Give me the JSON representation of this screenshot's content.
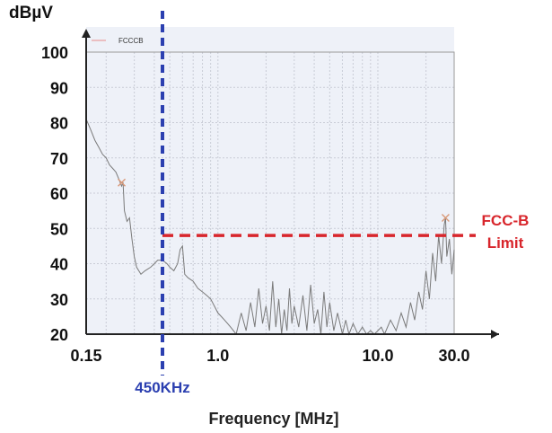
{
  "chart_data": {
    "type": "line",
    "ylabel": "dBµV",
    "xlabel": "Frequency [MHz]",
    "xscale": "log",
    "xlim": [
      0.15,
      50
    ],
    "ylim": [
      20,
      100
    ],
    "x_ticks": [
      {
        "value": 0.15,
        "label": "0.15"
      },
      {
        "value": 1.0,
        "label": "1.0"
      },
      {
        "value": 10.0,
        "label": "10.0"
      },
      {
        "value": 30.0,
        "label": "30.0"
      }
    ],
    "y_ticks": [
      {
        "value": 20,
        "label": "20"
      },
      {
        "value": 30,
        "label": "30"
      },
      {
        "value": 40,
        "label": "40"
      },
      {
        "value": 50,
        "label": "50"
      },
      {
        "value": 60,
        "label": "60"
      },
      {
        "value": 70,
        "label": "70"
      },
      {
        "value": 80,
        "label": "80"
      },
      {
        "value": 90,
        "label": "90"
      },
      {
        "value": 100,
        "label": "100"
      }
    ],
    "grid": true,
    "legend": {
      "position": "top-left",
      "entries": [
        {
          "label": "FCCCB",
          "color": "#e88a8a"
        }
      ]
    },
    "series": [
      {
        "color": "#7a7a7a",
        "points": [
          [
            0.15,
            81
          ],
          [
            0.16,
            78
          ],
          [
            0.17,
            75
          ],
          [
            0.18,
            73
          ],
          [
            0.19,
            71
          ],
          [
            0.2,
            70
          ],
          [
            0.21,
            68
          ],
          [
            0.22,
            67
          ],
          [
            0.23,
            66
          ],
          [
            0.24,
            64
          ],
          [
            0.25,
            62
          ],
          [
            0.255,
            63
          ],
          [
            0.26,
            55
          ],
          [
            0.27,
            52
          ],
          [
            0.28,
            53
          ],
          [
            0.29,
            47
          ],
          [
            0.3,
            42
          ],
          [
            0.31,
            39
          ],
          [
            0.33,
            37
          ],
          [
            0.35,
            38
          ],
          [
            0.38,
            39
          ],
          [
            0.4,
            40
          ],
          [
            0.42,
            41
          ],
          [
            0.45,
            41
          ],
          [
            0.48,
            40
          ],
          [
            0.5,
            39
          ],
          [
            0.53,
            38
          ],
          [
            0.56,
            40
          ],
          [
            0.58,
            44
          ],
          [
            0.6,
            45
          ],
          [
            0.62,
            37
          ],
          [
            0.65,
            36
          ],
          [
            0.7,
            35
          ],
          [
            0.75,
            33
          ],
          [
            0.8,
            32
          ],
          [
            0.85,
            31
          ],
          [
            0.9,
            30
          ],
          [
            0.95,
            28
          ],
          [
            1.0,
            26
          ],
          [
            1.05,
            25
          ],
          [
            1.1,
            24
          ],
          [
            1.15,
            23
          ],
          [
            1.2,
            22
          ],
          [
            1.25,
            21
          ],
          [
            1.3,
            20
          ],
          [
            1.4,
            26
          ],
          [
            1.5,
            21
          ],
          [
            1.6,
            29
          ],
          [
            1.7,
            22
          ],
          [
            1.8,
            33
          ],
          [
            1.9,
            23
          ],
          [
            2.0,
            28
          ],
          [
            2.1,
            21
          ],
          [
            2.2,
            35
          ],
          [
            2.3,
            22
          ],
          [
            2.4,
            30
          ],
          [
            2.5,
            20
          ],
          [
            2.6,
            27
          ],
          [
            2.7,
            21
          ],
          [
            2.8,
            33
          ],
          [
            2.9,
            23
          ],
          [
            3.0,
            28
          ],
          [
            3.2,
            22
          ],
          [
            3.4,
            31
          ],
          [
            3.6,
            21
          ],
          [
            3.8,
            34
          ],
          [
            4.0,
            23
          ],
          [
            4.2,
            27
          ],
          [
            4.4,
            20
          ],
          [
            4.6,
            32
          ],
          [
            4.8,
            22
          ],
          [
            5.0,
            29
          ],
          [
            5.3,
            21
          ],
          [
            5.6,
            26
          ],
          [
            6.0,
            20
          ],
          [
            6.3,
            24
          ],
          [
            6.6,
            20
          ],
          [
            7.0,
            23
          ],
          [
            7.5,
            20
          ],
          [
            8.0,
            22
          ],
          [
            8.5,
            20
          ],
          [
            9.0,
            21
          ],
          [
            9.5,
            20
          ],
          [
            10.0,
            21
          ],
          [
            10.5,
            22
          ],
          [
            11.0,
            20
          ],
          [
            12.0,
            24
          ],
          [
            13.0,
            21
          ],
          [
            14.0,
            26
          ],
          [
            15.0,
            22
          ],
          [
            16.0,
            29
          ],
          [
            17.0,
            24
          ],
          [
            18.0,
            32
          ],
          [
            19.0,
            27
          ],
          [
            20.0,
            38
          ],
          [
            21.0,
            30
          ],
          [
            22.0,
            43
          ],
          [
            23.0,
            35
          ],
          [
            24.0,
            48
          ],
          [
            25.0,
            40
          ],
          [
            26.0,
            51
          ],
          [
            26.5,
            53
          ],
          [
            27.0,
            42
          ],
          [
            28.0,
            47
          ],
          [
            29.0,
            37
          ],
          [
            30.0,
            44
          ]
        ]
      }
    ],
    "markers": [
      {
        "x": 0.25,
        "y": 63,
        "color": "#d99a7a"
      },
      {
        "x": 26.5,
        "y": 53,
        "color": "#d99a7a"
      }
    ],
    "annotations": {
      "freq_line": {
        "x": 0.45,
        "label": "450KHz",
        "color": "#2b3fb0"
      },
      "limit_line": {
        "y": 48,
        "x_from": 0.45,
        "label_line1": "FCC-B",
        "label_line2": "Limit",
        "color": "#d8262c"
      }
    }
  }
}
